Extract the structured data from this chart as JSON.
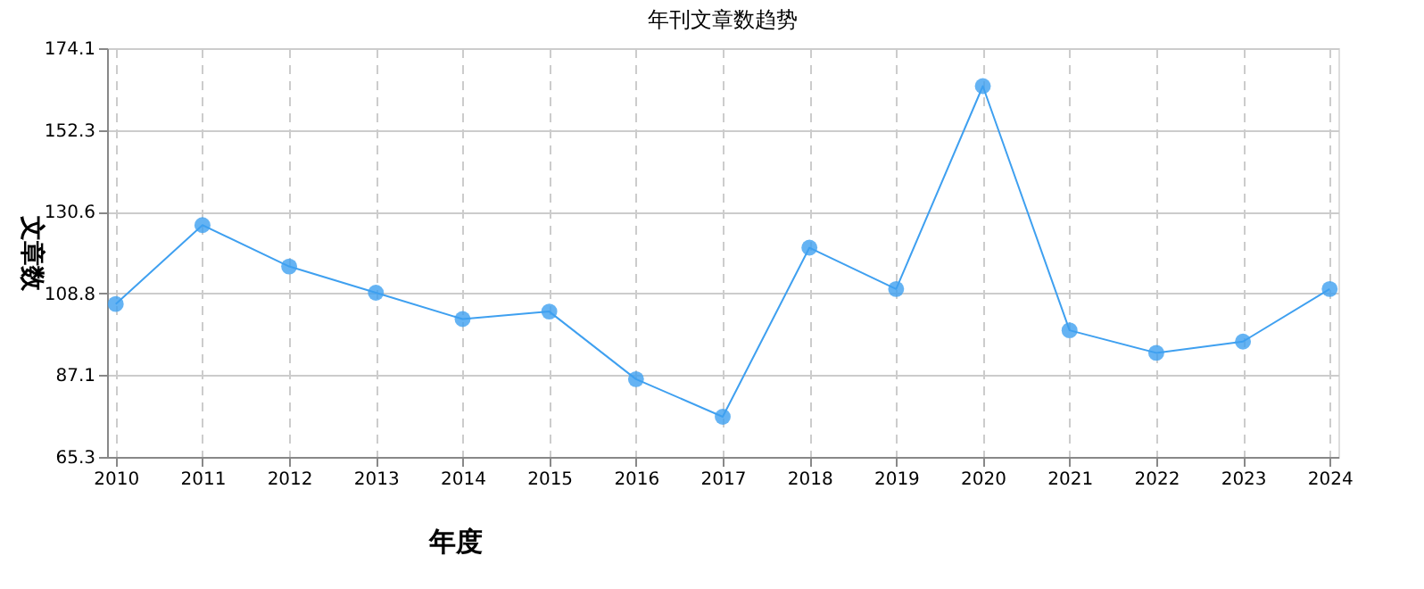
{
  "chart_data": {
    "type": "line",
    "title": "年刊文章数趋势",
    "xlabel": "年度",
    "ylabel": "文章数",
    "categories": [
      "2010",
      "2011",
      "2012",
      "2013",
      "2014",
      "2015",
      "2016",
      "2017",
      "2018",
      "2019",
      "2020",
      "2021",
      "2022",
      "2023",
      "2024"
    ],
    "series": [
      {
        "color": "#3fa0f0",
        "values": [
          106,
          127,
          116,
          109,
          102,
          104,
          86,
          76,
          121,
          110,
          164,
          99,
          93,
          96,
          110
        ]
      }
    ],
    "ylim": [
      65.3,
      174.1
    ],
    "yticks": [
      65.3,
      87.1,
      108.8,
      130.6,
      152.3,
      174.1
    ],
    "grid": true,
    "marker": "circle",
    "line_style": "solid",
    "legend": false
  }
}
